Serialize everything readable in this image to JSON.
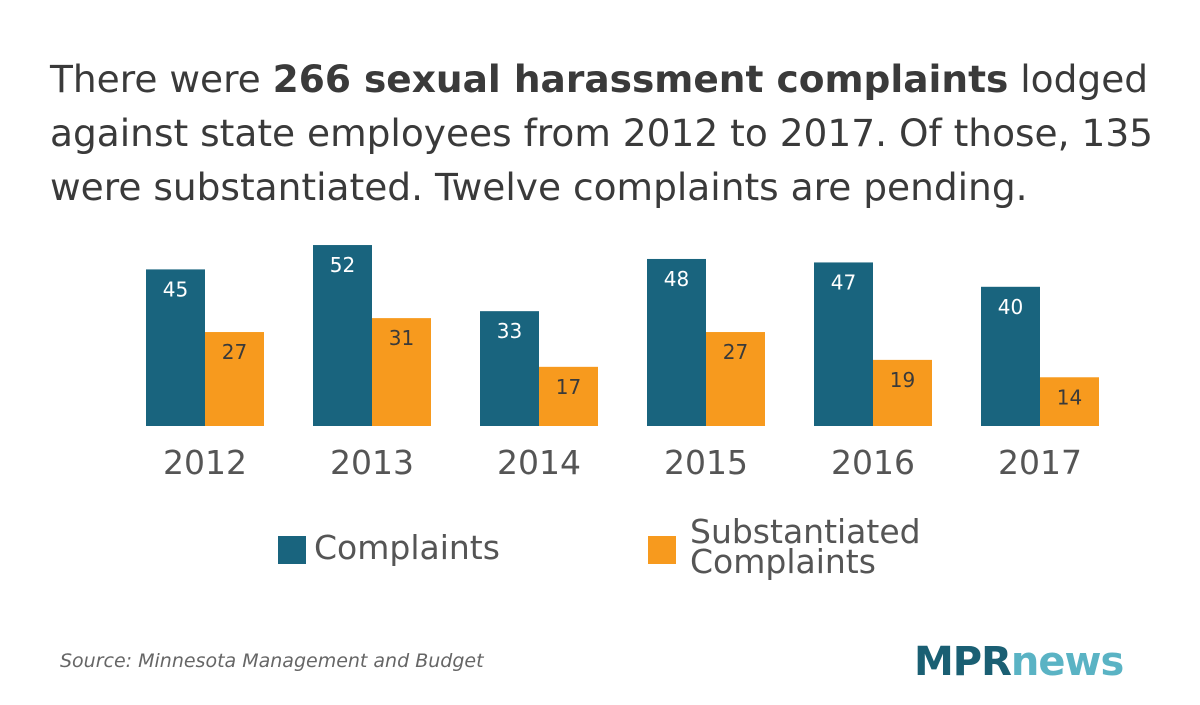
{
  "headline": {
    "part1": "There were ",
    "bold": "266 sexual harassment complaints",
    "part2": " lodged against state employees from 2012 to 2017. Of those, 135 were substantiated. Twelve complaints are pending."
  },
  "chart_data": {
    "type": "bar",
    "categories": [
      "2012",
      "2013",
      "2014",
      "2015",
      "2016",
      "2017"
    ],
    "series": [
      {
        "name": "Complaints",
        "values": [
          45,
          52,
          33,
          48,
          47,
          40
        ],
        "color": "#19647e"
      },
      {
        "name": "Substantiated Complaints",
        "values": [
          27,
          31,
          17,
          27,
          19,
          14
        ],
        "color": "#f79a1e"
      }
    ],
    "title": "",
    "xlabel": "",
    "ylabel": "",
    "ylim": [
      0,
      52
    ],
    "grid": false,
    "legend": "bottom-center"
  },
  "legend": {
    "complaints_label": "Complaints",
    "substantiated_label": "Substantiated Complaints"
  },
  "source": "Source: Minnesota Management and Budget",
  "logo": {
    "mpr": "MPR",
    "news": "news"
  },
  "colors": {
    "complaints": "#19647e",
    "substantiated": "#f79a1e",
    "text": "#3a3a3a"
  }
}
